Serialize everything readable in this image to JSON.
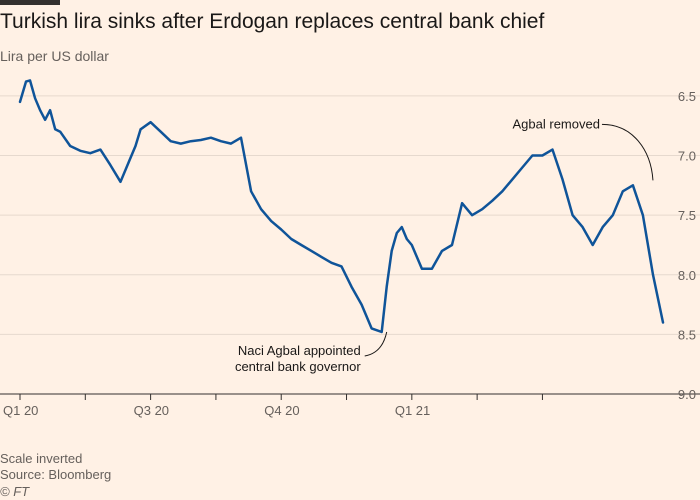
{
  "colors": {
    "background": "#fff1e5",
    "line": "#0f5499",
    "grid": "#e6d9ce",
    "text_muted": "#66605c",
    "text_dark": "#1a1817"
  },
  "footer": {
    "note": "Scale inverted",
    "source": "Source: Bloomberg",
    "credit": "© FT"
  },
  "chart_data": {
    "type": "line",
    "title": "Turkish lira sinks after Erdogan replaces central bank chief",
    "subtitle": "Lira per US dollar",
    "ylabel": "Lira per US dollar",
    "xlabel": "",
    "y_inverted": true,
    "ylim": [
      6.4,
      9.0
    ],
    "y_ticks": [
      6.5,
      7.0,
      7.5,
      8.0,
      8.5,
      9.0
    ],
    "y_tick_labels": [
      "6.5",
      "7.0",
      "7.5",
      "8.0",
      "8.5",
      "9.0"
    ],
    "xlim": [
      0,
      64
    ],
    "x_ticks": [
      0,
      13,
      26,
      39,
      52
    ],
    "x_tick_labels": [
      "Q1 20",
      "",
      "Q3 20",
      "",
      "Q4 20",
      "",
      "Q1 21",
      "",
      ""
    ],
    "x_tick_positions": [
      0,
      6.5,
      13,
      19.5,
      26,
      32.5,
      39,
      45.5,
      52
    ],
    "grid": true,
    "series": [
      {
        "name": "Lira per US dollar",
        "x": [
          0,
          0.6,
          1,
          1.5,
          2,
          2.5,
          3,
          3.5,
          4,
          5,
          6,
          7,
          8,
          9,
          10,
          11,
          11.5,
          12,
          13,
          14,
          15,
          16,
          17,
          18,
          19,
          20,
          21,
          22,
          23,
          24,
          25,
          26,
          27,
          28,
          29,
          30,
          31,
          32,
          33,
          34,
          35,
          36,
          36.5,
          37,
          37.5,
          38,
          38.5,
          39,
          40,
          41,
          42,
          43,
          44,
          45,
          46,
          47,
          48,
          49,
          50,
          51,
          52,
          53,
          54,
          55,
          56,
          57,
          58,
          59,
          60,
          61,
          62,
          63,
          64
        ],
        "values": [
          6.55,
          6.38,
          6.37,
          6.52,
          6.62,
          6.7,
          6.62,
          6.78,
          6.8,
          6.92,
          6.96,
          6.98,
          6.95,
          7.08,
          7.22,
          7.02,
          6.92,
          6.78,
          6.72,
          6.8,
          6.88,
          6.9,
          6.88,
          6.87,
          6.85,
          6.88,
          6.9,
          6.85,
          7.3,
          7.45,
          7.55,
          7.62,
          7.7,
          7.75,
          7.8,
          7.85,
          7.9,
          7.93,
          8.1,
          8.25,
          8.45,
          8.48,
          8.1,
          7.8,
          7.65,
          7.6,
          7.7,
          7.75,
          7.95,
          7.95,
          7.8,
          7.75,
          7.4,
          7.5,
          7.45,
          7.38,
          7.3,
          7.2,
          7.1,
          7.0,
          7.0,
          6.95,
          7.2,
          7.5,
          7.6,
          7.75,
          7.6,
          7.5,
          7.3,
          7.25,
          7.5,
          8.0,
          8.4
        ]
      }
    ],
    "annotations": [
      {
        "name": "agbal-appointed",
        "lines": [
          "Naci Agbal appointed",
          "central bank governor"
        ],
        "x": 36.5,
        "y": 8.48
      },
      {
        "name": "agbal-removed",
        "lines": [
          "Agbal removed"
        ],
        "x": 63,
        "y": 7.25
      }
    ]
  }
}
